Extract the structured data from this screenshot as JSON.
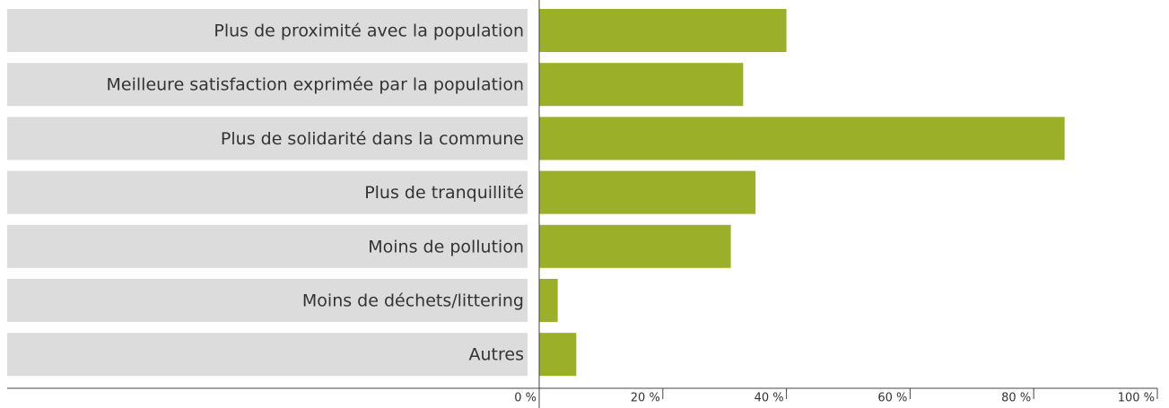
{
  "chart_data": {
    "type": "bar",
    "orientation": "horizontal",
    "categories": [
      "Plus de proximité avec la population",
      "Meilleure satisfaction exprimée par la population",
      "Plus de solidarité dans la commune",
      "Plus de tranquillité",
      "Moins de pollution",
      "Moins de déchets/littering",
      "Autres"
    ],
    "values": [
      40,
      33,
      85,
      35,
      31,
      3,
      6
    ],
    "color": "#9bb028",
    "label_background": "#dcdcdc",
    "xlim": [
      0,
      100
    ],
    "xticks": [
      {
        "value": 0,
        "label": "0 %"
      },
      {
        "value": 20,
        "label": "20 %"
      },
      {
        "value": 40,
        "label": "40 %"
      },
      {
        "value": 60,
        "label": "60 %"
      },
      {
        "value": 80,
        "label": "80 %"
      },
      {
        "value": 100,
        "label": "100 %"
      }
    ]
  }
}
